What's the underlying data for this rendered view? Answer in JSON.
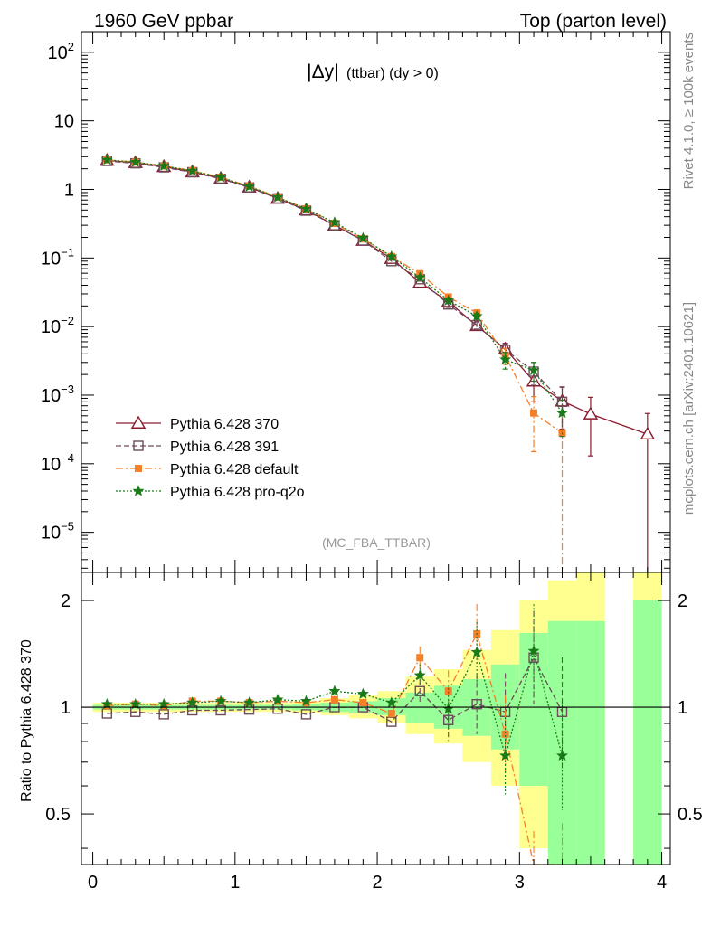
{
  "header": {
    "left": "1960 GeV ppbar",
    "right": "Top (parton level)"
  },
  "side_labels": {
    "rivet": "Rivet 4.1.0, ≥ 100k events",
    "mcplots": "mcplots.cern.ch [arXiv:2401.10621]"
  },
  "chart_data": [
    {
      "type": "line",
      "title": "|Δy| (ttbar) (dy > 0)",
      "title_main": "|Δy|",
      "title_sub": "(ttbar) (dy > 0)",
      "watermark": "(MC_FBA_TTBAR)",
      "yscale": "log",
      "xlim": [
        -0.08,
        4.06
      ],
      "ylim": [
        2.6e-06,
        200
      ],
      "y_ticks": [
        {
          "value": 1e-05,
          "label": "10",
          "exp": "−5"
        },
        {
          "value": 0.0001,
          "label": "10",
          "exp": "−4"
        },
        {
          "value": 0.001,
          "label": "10",
          "exp": "−3"
        },
        {
          "value": 0.01,
          "label": "10",
          "exp": "−2"
        },
        {
          "value": 0.1,
          "label": "10",
          "exp": "−1"
        },
        {
          "value": 1,
          "label": "1",
          "exp": ""
        },
        {
          "value": 10,
          "label": "10",
          "exp": ""
        },
        {
          "value": 100,
          "label": "10",
          "exp": "2"
        }
      ],
      "legend_position": "bottom-left",
      "series": [
        {
          "name": "Pythia 6.428 370",
          "color": "#8b1a2c",
          "marker": "triangle",
          "dash": "",
          "x": [
            0.1,
            0.3,
            0.5,
            0.7,
            0.9,
            1.1,
            1.3,
            1.5,
            1.7,
            1.9,
            2.1,
            2.3,
            2.5,
            2.7,
            2.9,
            3.1,
            3.3,
            3.5,
            3.9
          ],
          "y": [
            2.65,
            2.45,
            2.15,
            1.8,
            1.45,
            1.08,
            0.74,
            0.5,
            0.3,
            0.18,
            0.098,
            0.044,
            0.023,
            0.0103,
            0.0047,
            0.0016,
            0.00082,
            0.00053,
            0.00027
          ],
          "err": [
            0,
            0,
            0,
            0,
            0,
            0,
            0,
            0,
            0,
            0,
            0,
            0.003,
            0.002,
            0.0012,
            0.001,
            0.0008,
            0.0005,
            0.0004,
            0.00027
          ]
        },
        {
          "name": "Pythia 6.428 391",
          "color": "#6e4a5a",
          "marker": "open-square",
          "dash": "6,3",
          "x": [
            0.1,
            0.3,
            0.5,
            0.7,
            0.9,
            1.1,
            1.3,
            1.5,
            1.7,
            1.9,
            2.1,
            2.3,
            2.5,
            2.7,
            2.9,
            3.1,
            3.3
          ],
          "y": [
            2.6,
            2.4,
            2.1,
            1.78,
            1.43,
            1.07,
            0.74,
            0.49,
            0.3,
            0.18,
            0.09,
            0.049,
            0.021,
            0.0105,
            0.0046,
            0.0022,
            0.0008
          ],
          "err": [
            0,
            0,
            0,
            0,
            0,
            0,
            0,
            0,
            0,
            0,
            0,
            0.003,
            0.002,
            0.0013,
            0.001,
            0.0008,
            0.0005
          ]
        },
        {
          "name": "Pythia 6.428 default",
          "color": "#f57f26",
          "marker": "square",
          "dash": "8,3,2,3",
          "x": [
            0.1,
            0.3,
            0.5,
            0.7,
            0.9,
            1.1,
            1.3,
            1.5,
            1.7,
            1.9,
            2.1,
            2.3,
            2.5,
            2.7,
            2.9,
            3.1,
            3.3
          ],
          "y": [
            2.7,
            2.5,
            2.2,
            1.88,
            1.5,
            1.12,
            0.77,
            0.52,
            0.32,
            0.19,
            0.105,
            0.059,
            0.027,
            0.0158,
            0.0038,
            0.00055,
            0.00028
          ],
          "err": [
            0,
            0,
            0,
            0,
            0,
            0,
            0,
            0,
            0,
            0,
            0,
            0.004,
            0.002,
            0.0015,
            0.001,
            0.0004,
            0.00028
          ]
        },
        {
          "name": "Pythia 6.428 pro-q2o",
          "color": "#1a7a1a",
          "marker": "star",
          "dash": "2,2",
          "x": [
            0.1,
            0.3,
            0.5,
            0.7,
            0.9,
            1.1,
            1.3,
            1.5,
            1.7,
            1.9,
            2.1,
            2.3,
            2.5,
            2.7,
            2.9,
            3.1,
            3.3
          ],
          "y": [
            2.7,
            2.5,
            2.2,
            1.86,
            1.5,
            1.1,
            0.77,
            0.52,
            0.33,
            0.195,
            0.105,
            0.052,
            0.024,
            0.0142,
            0.0033,
            0.0023,
            0.00055
          ],
          "err": [
            0,
            0,
            0,
            0,
            0,
            0,
            0,
            0,
            0,
            0,
            0,
            0.003,
            0.002,
            0.0014,
            0.0009,
            0.0007,
            0.0003
          ]
        }
      ]
    },
    {
      "type": "line",
      "ylabel": "Ratio to Pythia 6.428 370",
      "yscale": "log",
      "xlim": [
        -0.08,
        4.06
      ],
      "ylim": [
        0.36,
        2.4
      ],
      "x_ticks": [
        0,
        1,
        2,
        3,
        4
      ],
      "x_tick_labels": [
        "0",
        "1",
        "2",
        "3",
        "4"
      ],
      "y_ticks": [
        0.5,
        1,
        2
      ],
      "y_tick_labels": [
        "0.5",
        "1",
        "2"
      ],
      "bands": {
        "edges": [
          0,
          0.2,
          0.4,
          0.6,
          0.8,
          1.0,
          1.2,
          1.4,
          1.6,
          1.8,
          2.0,
          2.2,
          2.4,
          2.6,
          2.8,
          3.0,
          3.2,
          3.4,
          3.6,
          3.8,
          4.0
        ],
        "yellow_lo": [
          0.97,
          0.97,
          0.97,
          0.97,
          0.97,
          0.97,
          0.97,
          0.96,
          0.95,
          0.93,
          0.9,
          0.84,
          0.79,
          0.7,
          0.6,
          0.4,
          0.36,
          0.36,
          null,
          0.36
        ],
        "yellow_hi": [
          1.03,
          1.03,
          1.03,
          1.03,
          1.03,
          1.03,
          1.03,
          1.04,
          1.06,
          1.08,
          1.11,
          1.22,
          1.28,
          1.45,
          1.65,
          2.0,
          2.28,
          2.4,
          null,
          2.4
        ],
        "green_lo": [
          0.985,
          0.985,
          0.985,
          0.985,
          0.985,
          0.985,
          0.985,
          0.98,
          0.97,
          0.96,
          0.95,
          0.9,
          0.87,
          0.83,
          0.76,
          0.6,
          0.36,
          0.36,
          null,
          0.36
        ],
        "green_hi": [
          1.015,
          1.015,
          1.015,
          1.015,
          1.015,
          1.015,
          1.015,
          1.02,
          1.03,
          1.04,
          1.06,
          1.1,
          1.15,
          1.2,
          1.32,
          1.62,
          1.75,
          1.75,
          null,
          2.0
        ]
      },
      "series": [
        {
          "name": "Pythia 6.428 391",
          "color": "#6e4a5a",
          "marker": "open-square",
          "dash": "6,3",
          "x": [
            0.1,
            0.3,
            0.5,
            0.7,
            0.9,
            1.1,
            1.3,
            1.5,
            1.7,
            1.9,
            2.1,
            2.3,
            2.5,
            2.7,
            2.9,
            3.1,
            3.3
          ],
          "y": [
            0.96,
            0.97,
            0.955,
            0.98,
            0.98,
            0.985,
            0.99,
            0.955,
            1.0,
            1.0,
            0.91,
            1.11,
            0.92,
            1.02,
            0.97,
            1.38,
            0.97
          ]
        },
        {
          "name": "Pythia 6.428 default",
          "color": "#f57f26",
          "marker": "square",
          "dash": "8,3,2,3",
          "x": [
            0.1,
            0.3,
            0.5,
            0.7,
            0.9,
            1.1,
            1.3,
            1.5,
            1.7,
            1.9,
            2.1,
            2.3,
            2.5,
            2.7,
            2.9,
            3.1,
            3.3
          ],
          "y": [
            1.01,
            1.02,
            1.01,
            1.04,
            1.04,
            1.03,
            1.04,
            1.03,
            1.05,
            1.03,
            0.96,
            1.38,
            1.11,
            1.61,
            0.84,
            0.33,
            0.33
          ]
        },
        {
          "name": "Pythia 6.428 pro-q2o",
          "color": "#1a7a1a",
          "marker": "star",
          "dash": "2,2",
          "x": [
            0.1,
            0.3,
            0.5,
            0.7,
            0.9,
            1.1,
            1.3,
            1.5,
            1.7,
            1.9,
            2.1,
            2.3,
            2.5,
            2.7,
            2.9,
            3.1,
            3.3
          ],
          "y": [
            1.02,
            1.02,
            1.02,
            1.03,
            1.04,
            1.03,
            1.05,
            1.04,
            1.11,
            1.09,
            1.03,
            1.23,
            0.99,
            1.43,
            0.73,
            1.44,
            0.73
          ]
        }
      ]
    }
  ]
}
